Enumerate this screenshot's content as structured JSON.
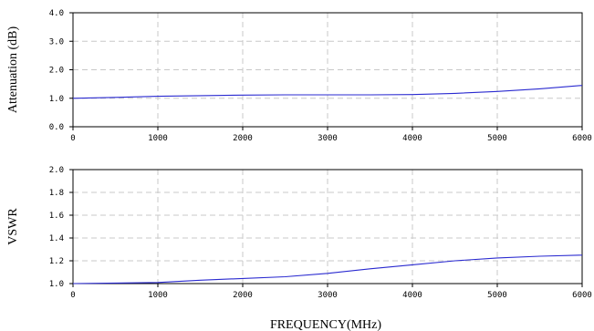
{
  "chart_data": [
    {
      "type": "line",
      "ylabel": "Attenuation (dB)",
      "xlabel": "",
      "xlim": [
        0,
        6000
      ],
      "ylim": [
        0,
        4
      ],
      "x_ticks": [
        0,
        1000,
        2000,
        3000,
        4000,
        5000,
        6000
      ],
      "x_tick_labels": [
        "0",
        "1000",
        "2000",
        "3000",
        "4000",
        "5000",
        "6000"
      ],
      "y_ticks": [
        0,
        1,
        2,
        3,
        4
      ],
      "y_tick_labels": [
        "0.0",
        "1.0",
        "2.0",
        "3.0",
        "4.0"
      ],
      "grid": true,
      "series": [
        {
          "color": "#2a2ad0",
          "x": [
            0,
            500,
            1000,
            1500,
            2000,
            2500,
            3000,
            3500,
            4000,
            4500,
            5000,
            5500,
            6000
          ],
          "y": [
            1.0,
            1.03,
            1.07,
            1.09,
            1.11,
            1.12,
            1.12,
            1.12,
            1.13,
            1.17,
            1.24,
            1.33,
            1.45
          ]
        }
      ]
    },
    {
      "type": "line",
      "ylabel": "VSWR",
      "xlabel": "FREQUENCY(MHz)",
      "xlim": [
        0,
        6000
      ],
      "ylim": [
        1.0,
        2.0
      ],
      "x_ticks": [
        0,
        1000,
        2000,
        3000,
        4000,
        5000,
        6000
      ],
      "x_tick_labels": [
        "0",
        "1000",
        "2000",
        "3000",
        "4000",
        "5000",
        "6000"
      ],
      "y_ticks": [
        1.0,
        1.2,
        1.4,
        1.6,
        1.8,
        2.0
      ],
      "y_tick_labels": [
        "1.0",
        "1.2",
        "1.4",
        "1.6",
        "1.8",
        "2.0"
      ],
      "grid": true,
      "series": [
        {
          "color": "#2a2ad0",
          "x": [
            0,
            500,
            1000,
            1500,
            2000,
            2500,
            3000,
            3500,
            4000,
            4500,
            5000,
            5500,
            6000
          ],
          "y": [
            1.0,
            1.005,
            1.01,
            1.03,
            1.045,
            1.06,
            1.09,
            1.13,
            1.165,
            1.2,
            1.225,
            1.24,
            1.25
          ]
        }
      ]
    }
  ]
}
